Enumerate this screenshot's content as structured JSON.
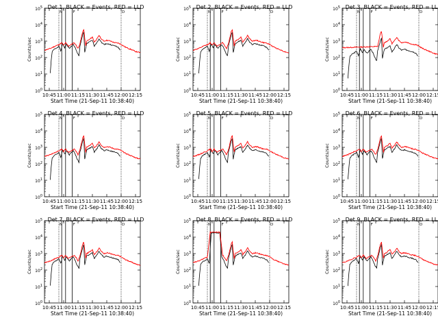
{
  "figure": {
    "background": "#ffffff",
    "series_colors": {
      "Events": "#000000",
      "LLD": "#ff0000"
    }
  },
  "shared_axes": {
    "xlabel": "Start Time (21-Sep-11 10:38:40)",
    "ylabel": "Counts/sec",
    "x_tick_labels": [
      "10:45",
      "11:00",
      "11:15",
      "11:30",
      "11:45",
      "12:00",
      "12:15"
    ],
    "x_tick_values_min": [
      45,
      60,
      75,
      90,
      105,
      120,
      135
    ],
    "xlim_min": [
      40,
      140
    ],
    "y_scale": "log",
    "ylim": [
      1,
      100000
    ],
    "y_tick_values": [
      1,
      10,
      100,
      1000,
      10000,
      100000
    ],
    "y_tick_labels": [
      {
        "base": "10",
        "exp": "0"
      },
      {
        "base": "10",
        "exp": "1"
      },
      {
        "base": "10",
        "exp": "2"
      },
      {
        "base": "10",
        "exp": "3"
      },
      {
        "base": "10",
        "exp": "4"
      },
      {
        "base": "10",
        "exp": "5"
      }
    ],
    "marker_labels": [
      "N",
      "F",
      "D"
    ]
  },
  "chart_data": [
    {
      "type": "line",
      "title": "Det 1, BLACK = Events, RED = LLD",
      "det": 1,
      "variant": "a",
      "dotted_lines_min": [
        55,
        120
      ],
      "solid_lines_min": [
        58,
        62,
        69
      ],
      "series": [
        {
          "name": "Events",
          "color": "#000000"
        },
        {
          "name": "LLD",
          "color": "#ff0000"
        }
      ]
    },
    {
      "type": "line",
      "title": "Det 2, BLACK = Events, RED = LLD",
      "det": 2,
      "variant": "a",
      "dotted_lines_min": [
        55,
        120
      ],
      "solid_lines_min": [
        58,
        62,
        69
      ],
      "series": [
        {
          "name": "Events",
          "color": "#000000"
        },
        {
          "name": "LLD",
          "color": "#ff0000"
        }
      ]
    },
    {
      "type": "line",
      "title": "Det 3, BLACK = Events, RED = LLD",
      "det": 3,
      "variant": "c",
      "dotted_lines_min": [
        55,
        120
      ],
      "solid_lines_min": [
        58,
        62,
        69
      ],
      "series": [
        {
          "name": "Events",
          "color": "#000000"
        },
        {
          "name": "LLD",
          "color": "#ff0000"
        }
      ]
    },
    {
      "type": "line",
      "title": "Det 4, BLACK = Events, RED = LLD",
      "det": 4,
      "variant": "a",
      "dotted_lines_min": [
        55,
        120
      ],
      "solid_lines_min": [
        58,
        62,
        69
      ],
      "series": [
        {
          "name": "Events",
          "color": "#000000"
        },
        {
          "name": "LLD",
          "color": "#ff0000"
        }
      ]
    },
    {
      "type": "line",
      "title": "Det 5, BLACK = Events, RED = LLD",
      "det": 5,
      "variant": "a",
      "dotted_lines_min": [
        55,
        120
      ],
      "solid_lines_min": [
        58,
        62,
        69
      ],
      "series": [
        {
          "name": "Events",
          "color": "#000000"
        },
        {
          "name": "LLD",
          "color": "#ff0000"
        }
      ]
    },
    {
      "type": "line",
      "title": "Det 6, BLACK = Events, RED = LLD",
      "det": 6,
      "variant": "a",
      "dotted_lines_min": [
        55,
        120
      ],
      "solid_lines_min": [
        58,
        62,
        69
      ],
      "series": [
        {
          "name": "Events",
          "color": "#000000"
        },
        {
          "name": "LLD",
          "color": "#ff0000"
        }
      ]
    },
    {
      "type": "line",
      "title": "Det 7, BLACK = Events, RED = LLD",
      "det": 7,
      "variant": "a",
      "dotted_lines_min": [
        55,
        120
      ],
      "solid_lines_min": [
        58,
        62,
        69
      ],
      "series": [
        {
          "name": "Events",
          "color": "#000000"
        },
        {
          "name": "LLD",
          "color": "#ff0000"
        }
      ]
    },
    {
      "type": "line",
      "title": "Det 8, BLACK = Events, RED = LLD",
      "det": 8,
      "variant": "b",
      "dotted_lines_min": [
        55,
        120
      ],
      "solid_lines_min": [
        58,
        62,
        69
      ],
      "series": [
        {
          "name": "Events",
          "color": "#000000"
        },
        {
          "name": "LLD",
          "color": "#ff0000"
        }
      ]
    },
    {
      "type": "line",
      "title": "Det 9, BLACK = Events, RED = LLD",
      "det": 9,
      "variant": "a",
      "dotted_lines_min": [
        55,
        120
      ],
      "solid_lines_min": [
        58,
        62,
        69
      ],
      "series": [
        {
          "name": "Events",
          "color": "#000000"
        },
        {
          "name": "LLD",
          "color": "#ff0000"
        }
      ]
    }
  ]
}
